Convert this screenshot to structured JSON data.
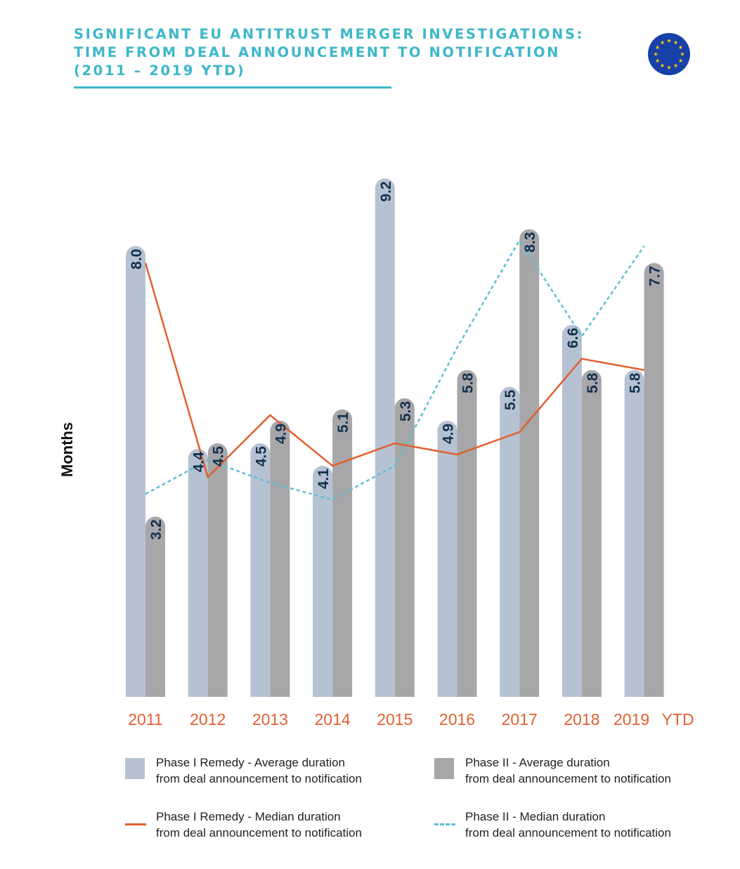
{
  "title": {
    "line1": "SIGNIFICANT EU ANTITRUST MERGER INVESTIGATIONS:",
    "line2": "TIME FROM DEAL ANNOUNCEMENT TO NOTIFICATION",
    "line3": "(2011 – 2019 YTD)"
  },
  "colors": {
    "accent": "#3db7c9",
    "phase1_bar": "#b6c2d2",
    "phase2_bar": "#a7a7a9",
    "phase1_median": "#e06030",
    "phase2_median": "#5fbfd3",
    "value_label": "#13314f",
    "year_label": "#e06030",
    "eu_flag_blue": "#1740a8",
    "eu_flag_star": "#ffcc00"
  },
  "icons": {
    "flag": "eu-flag-icon"
  },
  "chart_data": {
    "type": "bar",
    "categories": [
      "2011",
      "2012",
      "2013",
      "2014",
      "2015",
      "2016",
      "2017",
      "2018",
      "2019"
    ],
    "category_suffix_last": "YTD",
    "ylabel": "Months",
    "ylim": [
      0,
      10.5
    ],
    "grid": false,
    "series": [
      {
        "name_line1": "Phase I Remedy -  Average duration",
        "name_line2": "from deal announcement to notification",
        "kind": "bar",
        "values": [
          8.0,
          4.4,
          4.5,
          4.1,
          9.2,
          4.9,
          5.5,
          6.6,
          5.8
        ],
        "labels": [
          "8.0",
          "4.4",
          "4.5",
          "4.1",
          "9.2",
          "4.9",
          "5.5",
          "6.6",
          "5.8"
        ]
      },
      {
        "name_line1": "Phase II -  Average duration",
        "name_line2": "from deal announcement to notification",
        "kind": "bar",
        "values": [
          3.2,
          4.5,
          4.9,
          5.1,
          5.3,
          5.8,
          8.3,
          5.8,
          7.7
        ],
        "labels": [
          "3.2",
          "4.5",
          "4.9",
          "5.1",
          "5.3",
          "5.8",
          "8.3",
          "5.8",
          "7.7"
        ]
      },
      {
        "name_line1": "Phase I Remedy -  Median duration",
        "name_line2": "from deal announcement to notification",
        "kind": "line",
        "values": [
          7.7,
          3.9,
          5.0,
          4.1,
          4.5,
          4.3,
          4.7,
          6.0,
          5.8
        ]
      },
      {
        "name_line1": "Phase II -  Median duration",
        "name_line2": "from deal announcement to notification",
        "kind": "dashed-line",
        "values": [
          3.6,
          4.2,
          3.8,
          3.5,
          4.1,
          6.2,
          8.1,
          6.4,
          8.0
        ]
      }
    ],
    "legend_position": "bottom"
  }
}
